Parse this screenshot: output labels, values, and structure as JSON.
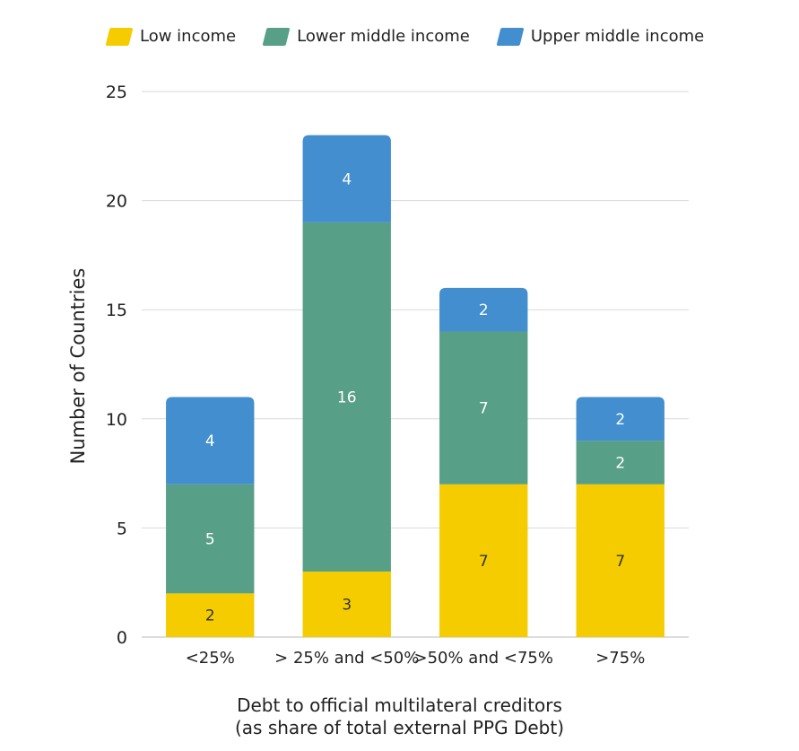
{
  "chart_data": {
    "type": "bar",
    "stacked": true,
    "categories": [
      "<25%",
      "> 25% and <50%",
      ">50% and <75%",
      ">75%"
    ],
    "series": [
      {
        "name": "Low income",
        "color": "#F5CC00",
        "values": [
          2,
          3,
          7,
          7
        ]
      },
      {
        "name": "Lower middle income",
        "color": "#589F87",
        "values": [
          5,
          16,
          7,
          2
        ]
      },
      {
        "name": "Upper middle income",
        "color": "#428ECE",
        "values": [
          4,
          4,
          2,
          2
        ]
      }
    ],
    "ylabel": "Number of Countries",
    "xlabel_line1": "Debt to official multilateral creditors",
    "xlabel_line2": "(as share of total external PPG Debt)",
    "ylim": [
      0,
      25
    ],
    "yticks": [
      0,
      5,
      10,
      15,
      20,
      25
    ],
    "grid": true,
    "legend_position": "top"
  }
}
